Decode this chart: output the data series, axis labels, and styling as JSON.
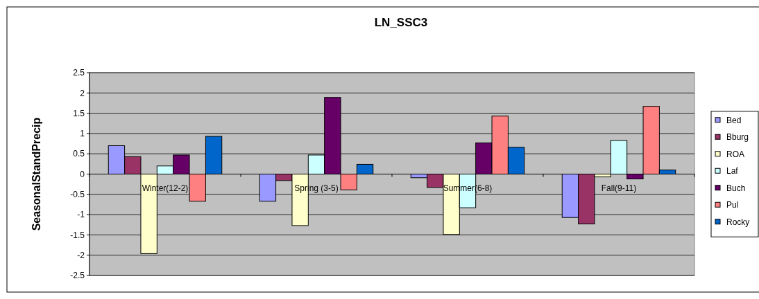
{
  "chart_data": {
    "type": "bar",
    "title": "LN_SSC3",
    "ylabel": "SeasonalStandPrecip",
    "categories": [
      "Winter(12-2)",
      "Spring (3-5)",
      "Summer(6-8)",
      "Fall(9-11)"
    ],
    "series": [
      {
        "name": "Bed",
        "color": "#9999ff",
        "values": [
          0.7,
          -0.67,
          -0.09,
          -1.07
        ]
      },
      {
        "name": "Bburg",
        "color": "#993366",
        "values": [
          0.43,
          -0.16,
          -0.33,
          -1.23
        ]
      },
      {
        "name": "ROA",
        "color": "#ffffcc",
        "values": [
          -1.96,
          -1.27,
          -1.49,
          -0.07
        ]
      },
      {
        "name": "Laf",
        "color": "#ccffff",
        "values": [
          0.2,
          0.47,
          -0.83,
          0.83
        ]
      },
      {
        "name": "Buch",
        "color": "#660066",
        "values": [
          0.47,
          1.89,
          0.77,
          -0.12
        ]
      },
      {
        "name": "Pul",
        "color": "#ff8080",
        "values": [
          -0.67,
          -0.39,
          1.43,
          1.67
        ]
      },
      {
        "name": "Rocky",
        "color": "#0066cc",
        "values": [
          0.93,
          0.24,
          0.66,
          0.1
        ]
      }
    ],
    "ylim": [
      -2.5,
      2.5
    ],
    "yticks": [
      -2.5,
      -2,
      -1.5,
      -1,
      -0.5,
      0,
      0.5,
      1,
      1.5,
      2,
      2.5
    ],
    "grid": "y",
    "legend": "right"
  }
}
